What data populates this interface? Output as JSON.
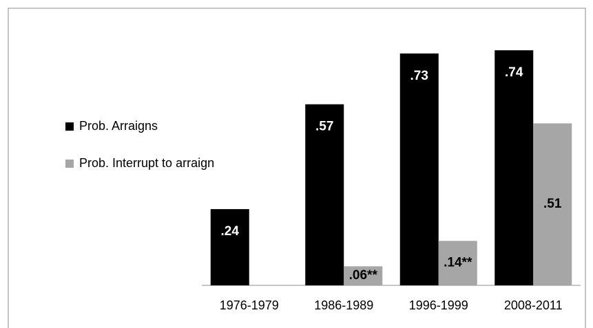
{
  "chart_data": {
    "type": "bar",
    "categories": [
      "1976-1979",
      "1986-1989",
      "1996-1999",
      "2008-2011"
    ],
    "series": [
      {
        "name": "Prob. Arraigns",
        "color": "#000000",
        "values": [
          0.24,
          0.57,
          0.73,
          0.74
        ],
        "value_labels": [
          ".24",
          ".57",
          ".73",
          ".74"
        ]
      },
      {
        "name": "Prob. Interrupt to arraign",
        "color": "#a6a6a6",
        "values": [
          null,
          0.06,
          0.14,
          0.51
        ],
        "value_labels": [
          null,
          ".06**",
          ".14**",
          ".51"
        ]
      }
    ],
    "legend": "left"
  }
}
